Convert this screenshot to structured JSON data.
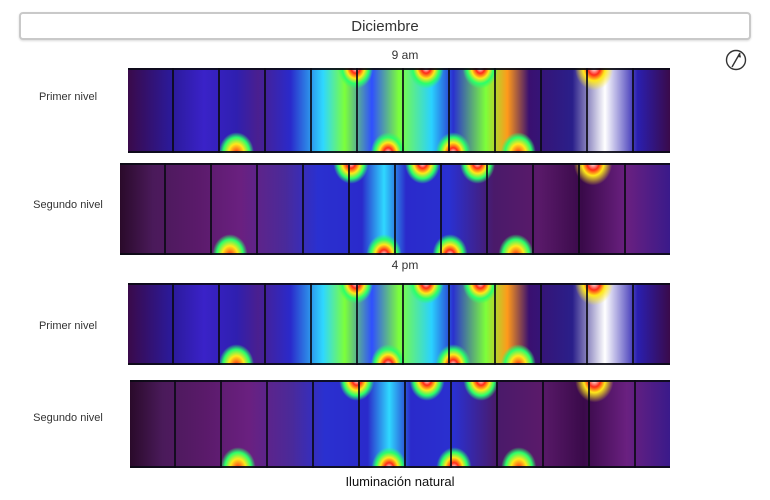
{
  "header": {
    "title": "Diciembre"
  },
  "sections": [
    {
      "time": "9 am",
      "levels": [
        "Primer nivel",
        "Segundo nivel"
      ]
    },
    {
      "time": "4 pm",
      "levels": [
        "Primer nivel",
        "Segundo nivel"
      ]
    }
  ],
  "caption": "Iluminación natural",
  "icons": {
    "compass": "north-arrow-icon"
  },
  "colors": {
    "accent": "#c9c9c9"
  }
}
